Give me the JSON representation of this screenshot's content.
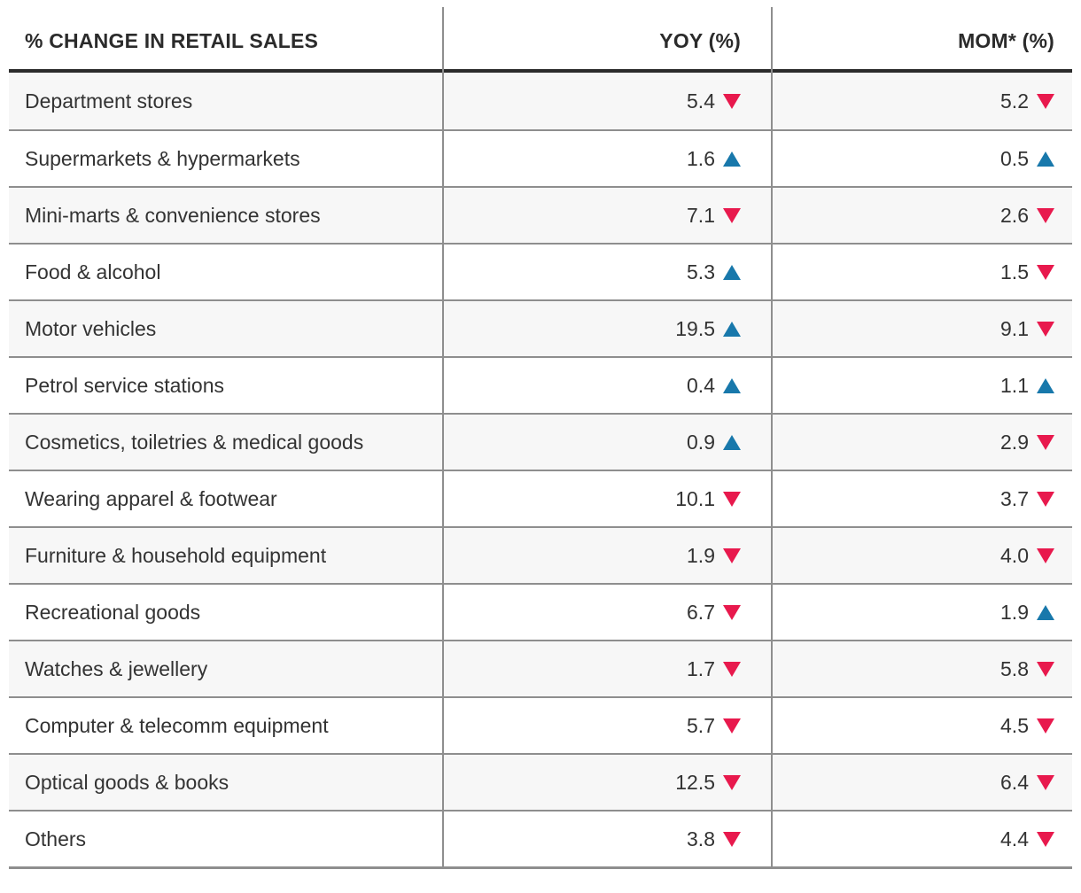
{
  "page_title": "% CHANGE IN RETAIL SALES",
  "chart_data": {
    "type": "table",
    "title": "% CHANGE IN RETAIL SALES",
    "columns": [
      "% CHANGE IN RETAIL SALES",
      "YOY (%)",
      "MOM* (%)"
    ],
    "rows": [
      {
        "category": "Department stores",
        "yoy": "5.4",
        "yoy_direction": "down",
        "mom": "5.2",
        "mom_direction": "down"
      },
      {
        "category": "Supermarkets & hypermarkets",
        "yoy": "1.6",
        "yoy_direction": "up",
        "mom": "0.5",
        "mom_direction": "up"
      },
      {
        "category": "Mini-marts & convenience stores",
        "yoy": "7.1",
        "yoy_direction": "down",
        "mom": "2.6",
        "mom_direction": "down"
      },
      {
        "category": "Food & alcohol",
        "yoy": "5.3",
        "yoy_direction": "up",
        "mom": "1.5",
        "mom_direction": "down"
      },
      {
        "category": "Motor vehicles",
        "yoy": "19.5",
        "yoy_direction": "up",
        "mom": "9.1",
        "mom_direction": "down"
      },
      {
        "category": "Petrol service stations",
        "yoy": "0.4",
        "yoy_direction": "up",
        "mom": "1.1",
        "mom_direction": "up"
      },
      {
        "category": "Cosmetics, toiletries & medical goods",
        "yoy": "0.9",
        "yoy_direction": "up",
        "mom": "2.9",
        "mom_direction": "down"
      },
      {
        "category": "Wearing apparel & footwear",
        "yoy": "10.1",
        "yoy_direction": "down",
        "mom": "3.7",
        "mom_direction": "down"
      },
      {
        "category": "Furniture & household equipment",
        "yoy": "1.9",
        "yoy_direction": "down",
        "mom": "4.0",
        "mom_direction": "down"
      },
      {
        "category": "Recreational goods",
        "yoy": "6.7",
        "yoy_direction": "down",
        "mom": "1.9",
        "mom_direction": "up"
      },
      {
        "category": "Watches & jewellery",
        "yoy": "1.7",
        "yoy_direction": "down",
        "mom": "5.8",
        "mom_direction": "down"
      },
      {
        "category": "Computer & telecomm equipment",
        "yoy": "5.7",
        "yoy_direction": "down",
        "mom": "4.5",
        "mom_direction": "down"
      },
      {
        "category": "Optical goods & books",
        "yoy": "12.5",
        "yoy_direction": "down",
        "mom": "6.4",
        "mom_direction": "down"
      },
      {
        "category": "Others",
        "yoy": "3.8",
        "yoy_direction": "down",
        "mom": "4.4",
        "mom_direction": "down"
      }
    ]
  },
  "colors": {
    "up_triangle": "#1878ab",
    "down_triangle": "#e8194d",
    "text": "#333333",
    "header_text": "#2b2b2b",
    "row_alt_background": "#f7f7f7",
    "grid_line": "#8e8e8e",
    "header_rule": "#2b2b2b"
  }
}
